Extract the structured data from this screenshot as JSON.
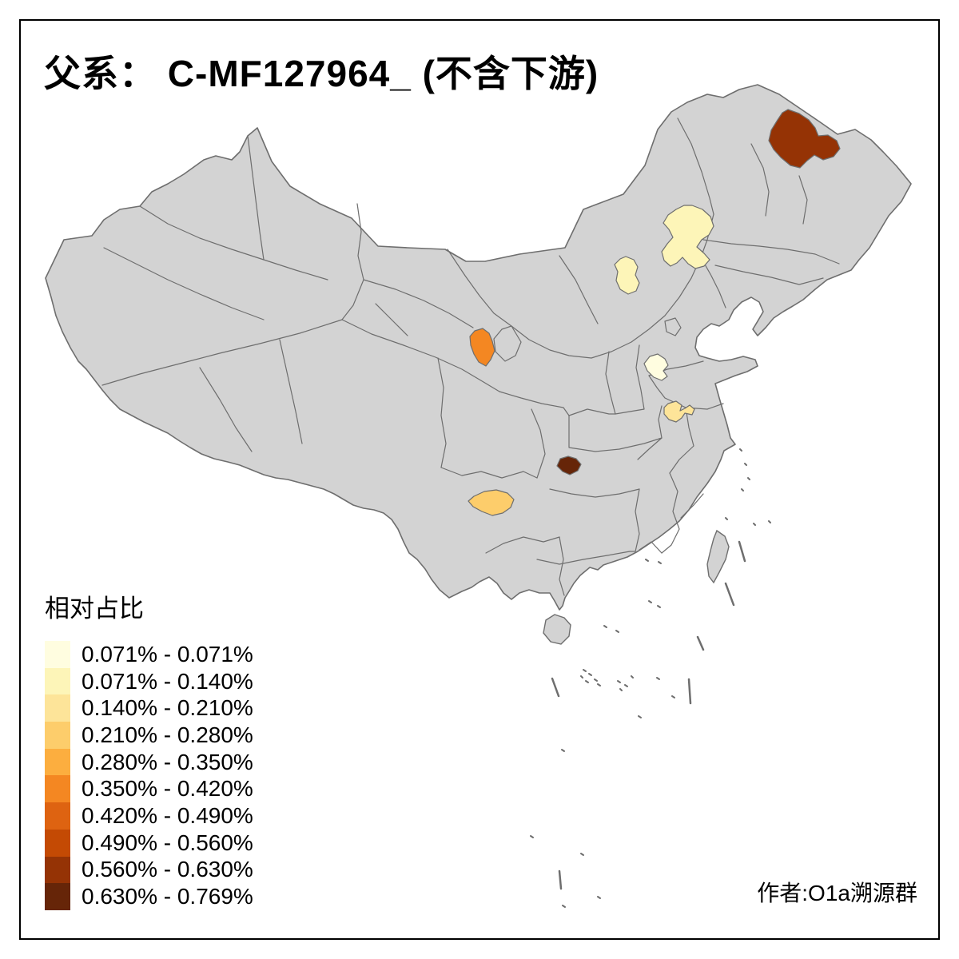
{
  "title": "父系： C-MF127964_ (不含下游)",
  "legend": {
    "title": "相对占比",
    "items": [
      {
        "label": "0.071% - 0.071%",
        "color": "#FFFDE0"
      },
      {
        "label": "0.071% - 0.140%",
        "color": "#FDF5B8"
      },
      {
        "label": "0.140% - 0.210%",
        "color": "#FDE499"
      },
      {
        "label": "0.210% - 0.280%",
        "color": "#FDCD6B"
      },
      {
        "label": "0.280% - 0.350%",
        "color": "#FCAE3F"
      },
      {
        "label": "0.350% - 0.420%",
        "color": "#F48722"
      },
      {
        "label": "0.420% - 0.490%",
        "color": "#DE6311"
      },
      {
        "label": "0.490% - 0.560%",
        "color": "#C44A04"
      },
      {
        "label": "0.560% - 0.630%",
        "color": "#953305"
      },
      {
        "label": "0.630% - 0.769%",
        "color": "#662508"
      }
    ]
  },
  "attribution": "作者:O1a溯源群",
  "map": {
    "base_fill": "#D3D3D3",
    "border_color": "#6E6E6E"
  },
  "chart_data": {
    "type": "choropleth",
    "title": "父系： C-MF127964_ (不含下游)",
    "legend_title": "相对占比",
    "unit": "% relative frequency",
    "base_region_color": "#D3D3D3",
    "bins": [
      "0.071% - 0.071%",
      "0.071% - 0.140%",
      "0.140% - 0.210%",
      "0.210% - 0.280%",
      "0.280% - 0.350%",
      "0.350% - 0.420%",
      "0.420% - 0.490%",
      "0.490% - 0.560%",
      "0.560% - 0.630%",
      "0.630% - 0.769%"
    ],
    "regions": [
      {
        "id": "far-northeast",
        "bin": "0.560% - 0.630%",
        "color": "#953305"
      },
      {
        "id": "west-jilin-east-inner-mongolia",
        "bin": "0.071% - 0.140%",
        "color": "#FDF5B8"
      },
      {
        "id": "southeast-inner-mongolia",
        "bin": "0.071% - 0.140%",
        "color": "#FDF5B8"
      },
      {
        "id": "central-gansu",
        "bin": "0.350% - 0.420%",
        "color": "#F48722"
      },
      {
        "id": "hebei-shandong-henan-junction",
        "bin": "0.071% - 0.071%",
        "color": "#FFFDE0"
      },
      {
        "id": "north-anhui",
        "bin": "0.140% - 0.210%",
        "color": "#FDE499"
      },
      {
        "id": "west-hubei",
        "bin": "0.630% - 0.769%",
        "color": "#662508"
      },
      {
        "id": "north-guizhou",
        "bin": "0.210% - 0.280%",
        "color": "#FDCD6B"
      }
    ],
    "note": "作者:O1a溯源群"
  }
}
